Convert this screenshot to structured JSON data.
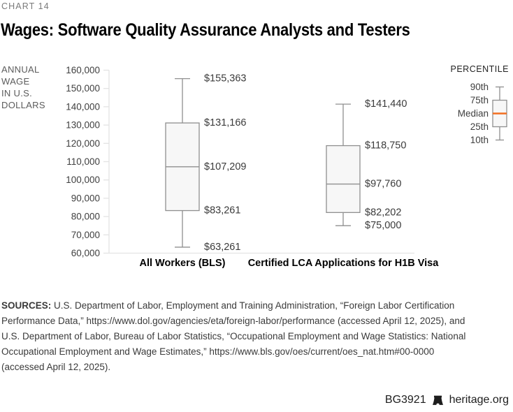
{
  "header": {
    "chart_label": "CHART 14",
    "title": "Wages: Software Quality Assurance Analysts and Testers"
  },
  "chart_data": {
    "type": "boxplot",
    "title": "Wages: Software Quality Assurance Analysts and Testers",
    "chart_label": "CHART 14",
    "ylabel": "ANNUAL WAGE IN U.S. DOLLARS",
    "ylabel_lines": [
      "ANNUAL",
      "WAGE",
      "IN U.S.",
      "DOLLARS"
    ],
    "ylim": [
      60000,
      160000
    ],
    "ytick_step": 10000,
    "grid": false,
    "categories": [
      "All Workers (BLS)",
      "Certified LCA Applications for H1B Visa"
    ],
    "series": [
      {
        "name": "All Workers (BLS)",
        "values": {
          "p10": 63261,
          "p25": 83261,
          "median": 107209,
          "p75": 131166,
          "p90": 155363
        },
        "value_labels": {
          "p10": "$63,261",
          "p25": "$83,261",
          "median": "$107,209",
          "p75": "$131,166",
          "p90": "$155,363"
        }
      },
      {
        "name": "Certified LCA Applications for H1B Visa",
        "values": {
          "p10": 75000,
          "p25": 82202,
          "median": 97760,
          "p75": 118750,
          "p90": 141440
        },
        "value_labels": {
          "p10": "$75,000",
          "p25": "$82,202",
          "median": "$97,760",
          "p75": "$118,750",
          "p90": "$141,440"
        }
      }
    ],
    "legend": {
      "title": "PERCENTILE",
      "entries": [
        "90th",
        "75th",
        "Median",
        "25th",
        "10th"
      ],
      "position": "top-right"
    },
    "colors": {
      "median_accent": "#f26f21",
      "box_fill": "#f7f7f7",
      "box_stroke": "#8f8f8f",
      "axis_line": "#e3e3e3",
      "tick_text": "#404040",
      "value_text": "#3b3b3b"
    }
  },
  "sources": {
    "label": "SOURCES:",
    "lines": [
      "U.S. Department of Labor, Employment and Training Administration, “Foreign Labor Certification",
      "Performance Data,” https://www.dol.gov/agencies/eta/foreign-labor/performance (accessed April 12, 2025), and",
      "U.S. Department of Labor, Bureau of Labor Statistics, “Occupational Employment and Wage Statistics: National",
      "Occupational Employment and Wage Estimates,” https://www.bls.gov/oes/current/oes_nat.htm#00-0000",
      "(accessed April 12, 2025)."
    ]
  },
  "footer": {
    "id": "BG3921",
    "site": "heritage.org",
    "logo_icon": "heritage-bell-icon"
  }
}
